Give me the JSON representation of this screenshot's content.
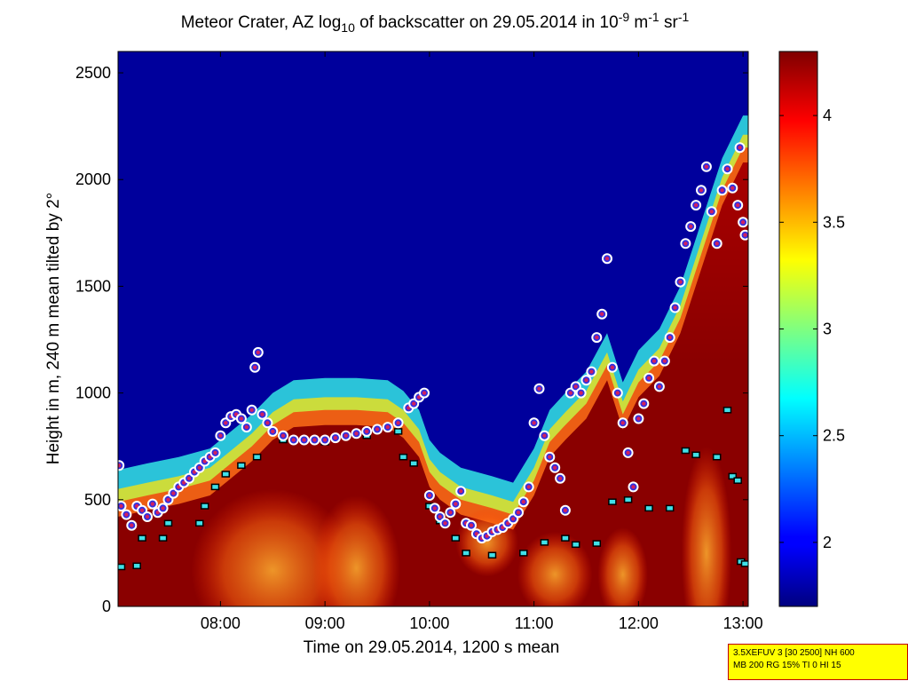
{
  "chart_data": {
    "type": "heatmap",
    "title": "Meteor Crater, AZ log10 of backscatter on 29.05.2014 in 10-9 m-1 sr-1",
    "title_parts": {
      "t1": "Meteor Crater, AZ log",
      "sub1": "10",
      "t2": " of backscatter on 29.05.2014 in 10",
      "sup1": "-9",
      "t3": " m",
      "sup2": "-1",
      "t4": " sr",
      "sup3": "-1"
    },
    "xlabel": "Time on 29.05.2014, 1200 s mean",
    "ylabel": "Height in m, 240 m mean tilted by 2°",
    "x_unit": "hours",
    "xlim": [
      7.02,
      13.05
    ],
    "ylim": [
      0,
      2600
    ],
    "x_ticks": [
      {
        "value": 8,
        "label": "08:00"
      },
      {
        "value": 9,
        "label": "09:00"
      },
      {
        "value": 10,
        "label": "10:00"
      },
      {
        "value": 11,
        "label": "11:00"
      },
      {
        "value": 12,
        "label": "12:00"
      },
      {
        "value": 13,
        "label": "13:00"
      }
    ],
    "y_ticks": [
      {
        "value": 0,
        "label": "0"
      },
      {
        "value": 500,
        "label": "500"
      },
      {
        "value": 1000,
        "label": "1000"
      },
      {
        "value": 1500,
        "label": "1500"
      },
      {
        "value": 2000,
        "label": "2000"
      },
      {
        "value": 2500,
        "label": "2500"
      }
    ],
    "colorbar": {
      "range": [
        1.7,
        4.3
      ],
      "ticks": [
        {
          "value": 2,
          "label": "2"
        },
        {
          "value": 2.5,
          "label": "2.5"
        },
        {
          "value": 3,
          "label": "3"
        },
        {
          "value": 3.5,
          "label": "3.5"
        },
        {
          "value": 4,
          "label": "4"
        }
      ],
      "colormap": "jet"
    },
    "colors": {
      "background_low": "#00009c",
      "high": "#800000"
    },
    "layer_top": [
      [
        7.02,
        640
      ],
      [
        7.3,
        670
      ],
      [
        7.6,
        700
      ],
      [
        7.9,
        740
      ],
      [
        8.1,
        820
      ],
      [
        8.3,
        900
      ],
      [
        8.5,
        1000
      ],
      [
        8.7,
        1060
      ],
      [
        9.0,
        1070
      ],
      [
        9.3,
        1070
      ],
      [
        9.6,
        1060
      ],
      [
        9.75,
        1010
      ],
      [
        9.9,
        920
      ],
      [
        10.0,
        780
      ],
      [
        10.1,
        720
      ],
      [
        10.3,
        650
      ],
      [
        10.6,
        610
      ],
      [
        10.8,
        580
      ],
      [
        11.0,
        740
      ],
      [
        11.15,
        920
      ],
      [
        11.3,
        1000
      ],
      [
        11.5,
        1100
      ],
      [
        11.7,
        1280
      ],
      [
        11.85,
        1050
      ],
      [
        12.0,
        1200
      ],
      [
        12.2,
        1300
      ],
      [
        12.4,
        1500
      ],
      [
        12.6,
        1800
      ],
      [
        12.8,
        2100
      ],
      [
        13.0,
        2300
      ],
      [
        13.05,
        2300
      ]
    ],
    "series": [
      {
        "marker": "circle",
        "points": [
          [
            7.03,
            660
          ],
          [
            7.05,
            470
          ],
          [
            7.1,
            430
          ],
          [
            7.15,
            380
          ],
          [
            7.2,
            470
          ],
          [
            7.25,
            450
          ],
          [
            7.3,
            420
          ],
          [
            7.35,
            480
          ],
          [
            7.4,
            440
          ],
          [
            7.45,
            460
          ],
          [
            7.5,
            500
          ],
          [
            7.55,
            530
          ],
          [
            7.6,
            560
          ],
          [
            7.65,
            580
          ],
          [
            7.7,
            600
          ],
          [
            7.75,
            630
          ],
          [
            7.8,
            650
          ],
          [
            7.85,
            680
          ],
          [
            7.9,
            700
          ],
          [
            7.95,
            720
          ],
          [
            8.0,
            800
          ],
          [
            8.05,
            860
          ],
          [
            8.1,
            890
          ],
          [
            8.15,
            900
          ],
          [
            8.2,
            880
          ],
          [
            8.25,
            840
          ],
          [
            8.3,
            920
          ],
          [
            8.33,
            1120
          ],
          [
            8.36,
            1190
          ],
          [
            8.4,
            900
          ],
          [
            8.45,
            860
          ],
          [
            8.5,
            820
          ],
          [
            8.6,
            800
          ],
          [
            8.7,
            780
          ],
          [
            8.8,
            780
          ],
          [
            8.9,
            780
          ],
          [
            9.0,
            780
          ],
          [
            9.1,
            790
          ],
          [
            9.2,
            800
          ],
          [
            9.3,
            810
          ],
          [
            9.4,
            820
          ],
          [
            9.5,
            830
          ],
          [
            9.6,
            840
          ],
          [
            9.7,
            860
          ],
          [
            9.8,
            930
          ],
          [
            9.85,
            950
          ],
          [
            9.9,
            980
          ],
          [
            9.95,
            1000
          ],
          [
            10.0,
            520
          ],
          [
            10.05,
            460
          ],
          [
            10.1,
            420
          ],
          [
            10.15,
            390
          ],
          [
            10.2,
            440
          ],
          [
            10.25,
            480
          ],
          [
            10.3,
            540
          ],
          [
            10.35,
            390
          ],
          [
            10.4,
            380
          ],
          [
            10.45,
            340
          ],
          [
            10.5,
            320
          ],
          [
            10.55,
            330
          ],
          [
            10.6,
            350
          ],
          [
            10.65,
            360
          ],
          [
            10.7,
            370
          ],
          [
            10.75,
            390
          ],
          [
            10.8,
            410
          ],
          [
            10.85,
            440
          ],
          [
            10.9,
            490
          ],
          [
            10.95,
            560
          ],
          [
            11.0,
            860
          ],
          [
            11.05,
            1020
          ],
          [
            11.1,
            800
          ],
          [
            11.15,
            700
          ],
          [
            11.2,
            650
          ],
          [
            11.25,
            600
          ],
          [
            11.3,
            450
          ],
          [
            11.35,
            1000
          ],
          [
            11.4,
            1030
          ],
          [
            11.45,
            1000
          ],
          [
            11.5,
            1060
          ],
          [
            11.55,
            1100
          ],
          [
            11.6,
            1260
          ],
          [
            11.65,
            1370
          ],
          [
            11.7,
            1630
          ],
          [
            11.75,
            1120
          ],
          [
            11.8,
            1000
          ],
          [
            11.85,
            860
          ],
          [
            11.9,
            720
          ],
          [
            11.95,
            560
          ],
          [
            12.0,
            880
          ],
          [
            12.05,
            950
          ],
          [
            12.1,
            1070
          ],
          [
            12.15,
            1150
          ],
          [
            12.2,
            1030
          ],
          [
            12.25,
            1150
          ],
          [
            12.3,
            1260
          ],
          [
            12.35,
            1400
          ],
          [
            12.4,
            1520
          ],
          [
            12.45,
            1700
          ],
          [
            12.5,
            1780
          ],
          [
            12.55,
            1880
          ],
          [
            12.6,
            1950
          ],
          [
            12.65,
            2060
          ],
          [
            12.7,
            1850
          ],
          [
            12.75,
            1700
          ],
          [
            12.8,
            1950
          ],
          [
            12.85,
            2050
          ],
          [
            12.9,
            1960
          ],
          [
            12.95,
            1880
          ],
          [
            12.97,
            2150
          ],
          [
            13.0,
            1800
          ],
          [
            13.02,
            1740
          ]
        ]
      },
      {
        "marker": "square",
        "points": [
          [
            7.05,
            185
          ],
          [
            7.2,
            190
          ],
          [
            7.25,
            320
          ],
          [
            7.45,
            320
          ],
          [
            7.5,
            390
          ],
          [
            7.8,
            390
          ],
          [
            7.85,
            470
          ],
          [
            7.95,
            560
          ],
          [
            8.05,
            620
          ],
          [
            8.2,
            660
          ],
          [
            8.35,
            700
          ],
          [
            8.6,
            780
          ],
          [
            9.0,
            770
          ],
          [
            9.4,
            800
          ],
          [
            9.7,
            820
          ],
          [
            9.75,
            700
          ],
          [
            9.85,
            670
          ],
          [
            10.0,
            470
          ],
          [
            10.1,
            400
          ],
          [
            10.25,
            320
          ],
          [
            10.35,
            250
          ],
          [
            10.6,
            240
          ],
          [
            10.9,
            250
          ],
          [
            11.1,
            300
          ],
          [
            11.3,
            320
          ],
          [
            11.4,
            290
          ],
          [
            11.6,
            295
          ],
          [
            11.75,
            490
          ],
          [
            11.9,
            500
          ],
          [
            12.1,
            460
          ],
          [
            12.3,
            460
          ],
          [
            12.45,
            730
          ],
          [
            12.55,
            710
          ],
          [
            12.75,
            700
          ],
          [
            12.85,
            920
          ],
          [
            12.9,
            610
          ],
          [
            12.95,
            590
          ],
          [
            12.98,
            210
          ],
          [
            13.02,
            200
          ]
        ]
      }
    ]
  },
  "info_box": {
    "line1": "3.5XEFUV 3 [30 2500] NH 600",
    "line2": "MB 200 RG 15% TI 0 HI 15"
  }
}
